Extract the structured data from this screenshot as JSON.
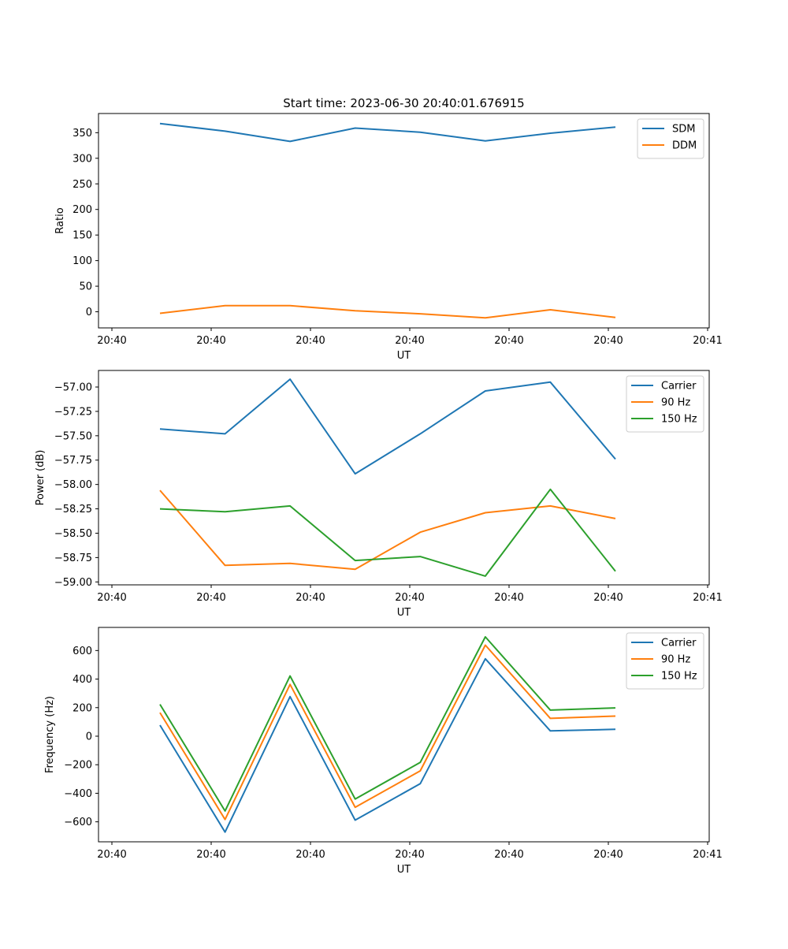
{
  "figure_title": "Start time: 2023-06-30 20:40:01.676915",
  "chart_data": [
    {
      "type": "line",
      "title": "Start time: 2023-06-30 20:40:01.676915",
      "xlabel": "UT",
      "ylabel": "Ratio",
      "x_tick_labels": [
        "20:40",
        "20:40",
        "20:40",
        "20:40",
        "20:40",
        "20:40",
        "20:41"
      ],
      "x": [
        "20:40:02.4",
        "20:40:03.0",
        "20:40:03.6",
        "20:40:04.2",
        "20:40:04.8",
        "20:40:05.4",
        "20:40:06.0",
        "20:40:06.6"
      ],
      "yticks": [
        0,
        50,
        100,
        150,
        200,
        250,
        300,
        350
      ],
      "ylim": [
        -31.5,
        387.5
      ],
      "legend": "top-right",
      "grid": false,
      "series": [
        {
          "name": "SDM",
          "color": "#1f77b4",
          "values": [
            368,
            353,
            333,
            359,
            351,
            334,
            349,
            361
          ]
        },
        {
          "name": "DDM",
          "color": "#ff7f0e",
          "values": [
            -3,
            12,
            12,
            2,
            -4,
            -12,
            4,
            -11
          ]
        }
      ]
    },
    {
      "type": "line",
      "xlabel": "UT",
      "ylabel": "Power (dB)",
      "x_tick_labels": [
        "20:40",
        "20:40",
        "20:40",
        "20:40",
        "20:40",
        "20:40",
        "20:41"
      ],
      "x": [
        "20:40:02.4",
        "20:40:03.0",
        "20:40:03.6",
        "20:40:04.2",
        "20:40:04.8",
        "20:40:05.4",
        "20:40:06.0",
        "20:40:06.6"
      ],
      "yticks": [
        -59.0,
        -58.75,
        -58.5,
        -58.25,
        -58.0,
        -57.75,
        -57.5,
        -57.25,
        -57.0
      ],
      "ytick_labels": [
        "−59.00",
        "−58.75",
        "−58.50",
        "−58.25",
        "−58.00",
        "−57.75",
        "−57.50",
        "−57.25",
        "−57.00"
      ],
      "ylim": [
        -59.03,
        -56.83
      ],
      "legend": "top-right",
      "grid": false,
      "series": [
        {
          "name": "Carrier",
          "color": "#1f77b4",
          "values": [
            -57.43,
            -57.48,
            -56.92,
            -57.89,
            -57.48,
            -57.04,
            -56.95,
            -57.74
          ]
        },
        {
          "name": "90 Hz",
          "color": "#ff7f0e",
          "values": [
            -58.06,
            -58.83,
            -58.81,
            -58.87,
            -58.49,
            -58.29,
            -58.22,
            -58.35
          ]
        },
        {
          "name": "150 Hz",
          "color": "#2ca02c",
          "values": [
            -58.25,
            -58.28,
            -58.22,
            -58.78,
            -58.74,
            -58.94,
            -58.05,
            -58.89
          ]
        }
      ]
    },
    {
      "type": "line",
      "xlabel": "UT",
      "ylabel": "Frequency (Hz)",
      "x_tick_labels": [
        "20:40",
        "20:40",
        "20:40",
        "20:40",
        "20:40",
        "20:40",
        "20:41"
      ],
      "x": [
        "20:40:02.4",
        "20:40:03.0",
        "20:40:03.6",
        "20:40:04.2",
        "20:40:04.8",
        "20:40:05.4",
        "20:40:06.0",
        "20:40:06.6"
      ],
      "yticks": [
        -600,
        -400,
        -200,
        0,
        200,
        400,
        600
      ],
      "ytick_labels": [
        "−600",
        "−400",
        "−200",
        "0",
        "200",
        "400",
        "600"
      ],
      "ylim": [
        -740,
        762
      ],
      "legend": "top-right",
      "grid": false,
      "series": [
        {
          "name": "Carrier",
          "color": "#1f77b4",
          "values": [
            77,
            -672,
            277,
            -588,
            -333,
            542,
            37,
            48
          ]
        },
        {
          "name": "90 Hz",
          "color": "#ff7f0e",
          "values": [
            165,
            -584,
            363,
            -498,
            -243,
            638,
            125,
            141
          ]
        },
        {
          "name": "150 Hz",
          "color": "#2ca02c",
          "values": [
            223,
            -524,
            422,
            -440,
            -184,
            696,
            183,
            198
          ]
        }
      ]
    }
  ]
}
